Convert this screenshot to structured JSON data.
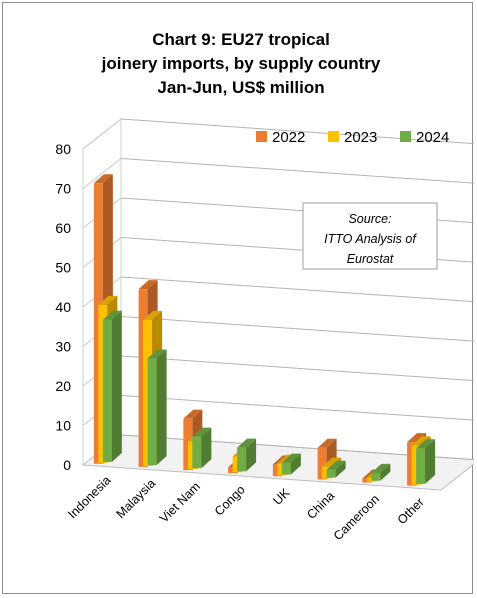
{
  "chart_data": {
    "type": "bar",
    "title": "Chart 9: EU27 tropical joinery imports, by supply country Jan-Jun, US$ million",
    "title_lines": [
      "Chart 9: EU27 tropical",
      "joinery imports, by supply country",
      "Jan-Jun, US$ million"
    ],
    "categories": [
      "Indonesia",
      "Malaysia",
      "Viet Nam",
      "Congo",
      "UK",
      "China",
      "Cameroon",
      "Other"
    ],
    "series": [
      {
        "name": "2022",
        "color": "#ed7d31",
        "values": [
          71,
          45,
          13,
          1.5,
          3,
          8,
          1,
          11
        ]
      },
      {
        "name": "2023",
        "color": "#ffc000",
        "values": [
          40,
          37,
          7,
          4,
          3,
          3,
          1,
          10
        ]
      },
      {
        "name": "2024",
        "color": "#70ad47",
        "values": [
          36,
          27,
          8,
          6,
          3,
          2,
          2,
          9
        ]
      }
    ],
    "yticks": [
      "0",
      "10",
      "20",
      "30",
      "40",
      "50",
      "60",
      "70",
      "80"
    ],
    "ylim": [
      0,
      80
    ],
    "xlabel": "",
    "ylabel": "",
    "grid": true,
    "legend_position": "top-right",
    "annotation_lines": [
      "Source:",
      "ITTO Analysis of",
      "Eurostat"
    ],
    "render_style": "3d-clustered-column"
  }
}
